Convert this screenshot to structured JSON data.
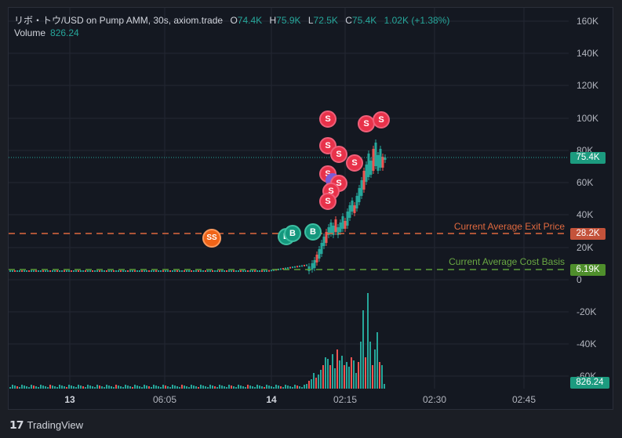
{
  "legend": {
    "symbol": "リボ・トウ/USD on Pump AMM, 30s, axiom.trade",
    "o_label": "O",
    "o_value": "74.4K",
    "h_label": "H",
    "h_value": "75.9K",
    "l_label": "L",
    "l_value": "72.5K",
    "c_label": "C",
    "c_value": "75.4K",
    "change": "1.02K (+1.38%)",
    "volume_label": "Volume",
    "volume_value": "826.24"
  },
  "price_axis": {
    "labels": [
      "160K",
      "140K",
      "120K",
      "100K",
      "80K",
      "60K",
      "40K",
      "20K",
      "0",
      "-20K",
      "-40K",
      "-60K"
    ]
  },
  "time_axis": {
    "labels": [
      {
        "text": "13",
        "bold": true
      },
      {
        "text": "06:05",
        "bold": false
      },
      {
        "text": "14",
        "bold": true
      },
      {
        "text": "02:15",
        "bold": false
      },
      {
        "text": "02:30",
        "bold": false
      },
      {
        "text": "02:45",
        "bold": false
      }
    ]
  },
  "price_tags": {
    "last_price": "75.4K",
    "exit_price": "28.2K",
    "cost_basis": "6.19K",
    "volume": "826.24"
  },
  "lines": {
    "exit_label": "Current Average Exit Price",
    "cost_label": "Current Average Cost Basis"
  },
  "colors": {
    "up": "#26a69a",
    "down": "#ef5350",
    "exit_line": "#e0693f",
    "cost_line": "#5d9d3a",
    "last_price_tag": "#1c9b7f",
    "exit_tag": "#c4533b",
    "cost_tag": "#4f8f2c"
  },
  "markers": {
    "sell": "S",
    "buy": "B",
    "sell_sell": "SS"
  },
  "footer": {
    "brand": "TradingView"
  }
}
